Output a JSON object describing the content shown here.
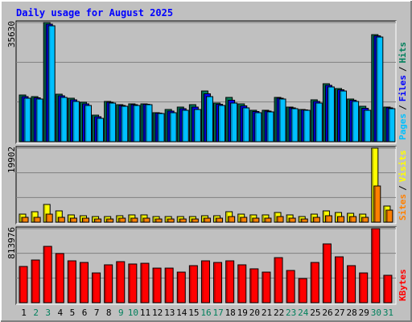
{
  "chart_data": {
    "type": "bar",
    "title": "Daily usage for August 2025",
    "legend_separator": "/",
    "categories": [
      "1",
      "2",
      "3",
      "4",
      "5",
      "6",
      "7",
      "8",
      "9",
      "10",
      "11",
      "12",
      "13",
      "14",
      "15",
      "16",
      "17",
      "18",
      "19",
      "20",
      "21",
      "22",
      "23",
      "24",
      "25",
      "26",
      "27",
      "28",
      "29",
      "30",
      "31"
    ],
    "category_colors": [
      "#000000",
      "#00805c",
      "#00805c",
      "#000000",
      "#000000",
      "#000000",
      "#000000",
      "#000000",
      "#00805c",
      "#00805c",
      "#000000",
      "#000000",
      "#000000",
      "#000000",
      "#000000",
      "#00805c",
      "#00805c",
      "#000000",
      "#000000",
      "#000000",
      "#000000",
      "#000000",
      "#00805c",
      "#00805c",
      "#000000",
      "#000000",
      "#000000",
      "#000000",
      "#000000",
      "#00805c",
      "#00805c"
    ],
    "panels": [
      {
        "ylim": [
          0,
          35630
        ],
        "yticks": [
          35630
        ],
        "series": [
          {
            "name": "Hits",
            "color": "#00805c",
            "values": [
              13960,
              13480,
              35630,
              14200,
              13000,
              11790,
              7940,
              12030,
              11070,
              11310,
              11310,
              8670,
              9630,
              10350,
              11070,
              15160,
              11550,
              13240,
              11310,
              9390,
              9390,
              13240,
              10350,
              9630,
              12520,
              17330,
              15890,
              12760,
              10590,
              32010,
              10350
            ]
          },
          {
            "name": "Files",
            "color": "#0000ff",
            "values": [
              13480,
              13120,
              35140,
              13720,
              12520,
              11310,
              7460,
              11790,
              10830,
              11070,
              11190,
              8550,
              9150,
              9870,
              10350,
              14320,
              11190,
              12400,
              10710,
              9030,
              9150,
              13000,
              10110,
              9510,
              12040,
              16850,
              15520,
              12400,
              9990,
              31650,
              10110
            ]
          },
          {
            "name": "Pages",
            "color": "#00c0ff",
            "values": [
              13000,
              12760,
              34660,
              13240,
              12030,
              10830,
              6980,
              11550,
              10590,
              10830,
              11070,
              8420,
              8670,
              9390,
              9630,
              13480,
              10830,
              11550,
              10110,
              8670,
              8910,
              12760,
              9870,
              9390,
              11550,
              16370,
              15160,
              12030,
              9390,
              31290,
              9870
            ]
          }
        ]
      },
      {
        "ylim": [
          0,
          19902
        ],
        "yticks": [
          19902
        ],
        "series": [
          {
            "name": "Visits",
            "color": "#ffff00",
            "values": [
              2160,
              2810,
              4760,
              3030,
              1950,
              1730,
              1510,
              1510,
              1730,
              1950,
              1950,
              1510,
              1510,
              1510,
              1510,
              1730,
              1730,
              2810,
              2160,
              1950,
              1950,
              2600,
              1950,
              1510,
              2160,
              3030,
              2600,
              2380,
              2160,
              19902,
              4330
            ]
          },
          {
            "name": "Sites",
            "color": "#ff8000",
            "values": [
              1300,
              1300,
              2160,
              1300,
              1080,
              1080,
              860,
              860,
              1080,
              1080,
              1080,
              860,
              860,
              860,
              860,
              1080,
              1080,
              1510,
              1300,
              1080,
              1080,
              1510,
              1080,
              860,
              1300,
              1730,
              1510,
              1510,
              1300,
              9730,
              3240
            ]
          }
        ]
      },
      {
        "ylim": [
          0,
          813976
        ],
        "yticks": [
          813976
        ],
        "series": [
          {
            "name": "KBytes",
            "color": "#ff0000",
            "values": [
              398000,
              469000,
              619000,
              540000,
              460000,
              442000,
              327000,
              416000,
              451000,
              425000,
              433000,
              380000,
              380000,
              336000,
              407000,
              460000,
              442000,
              460000,
              416000,
              372000,
              336000,
              495000,
              354000,
              265000,
              442000,
              646000,
              504000,
              407000,
              327000,
              813976,
              301000
            ]
          }
        ]
      }
    ]
  }
}
